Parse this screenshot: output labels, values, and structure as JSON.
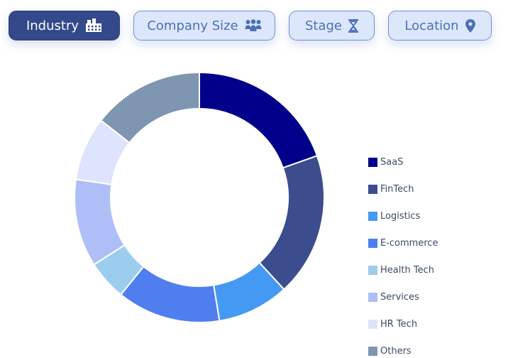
{
  "filters": [
    {
      "label": "Industry",
      "icon": "building-icon",
      "active": true
    },
    {
      "label": "Company Size",
      "icon": "people-icon",
      "active": false
    },
    {
      "label": "Stage",
      "icon": "hourglass-icon",
      "active": false
    },
    {
      "label": "Location",
      "icon": "map-pin-icon",
      "active": false
    }
  ],
  "colors": {
    "active_chip_bg": "#33498a",
    "chip_bg": "#dde7fb",
    "chip_border": "#6a93db",
    "chip_text": "#4b70b8"
  },
  "chart_data": {
    "type": "pie",
    "style": "donut",
    "title": "",
    "legend_position": "right",
    "categories": [
      "SaaS",
      "FinTech",
      "Logistics",
      "E-commerce",
      "Health Tech",
      "Services",
      "HR Tech",
      "Others"
    ],
    "values": [
      19,
      18,
      9,
      13,
      5,
      11,
      8,
      14
    ],
    "colors": [
      "#00008b",
      "#3b4d8c",
      "#4499f3",
      "#4f7fef",
      "#9ccdee",
      "#aebff7",
      "#dde4fb",
      "#7e96b2"
    ]
  }
}
